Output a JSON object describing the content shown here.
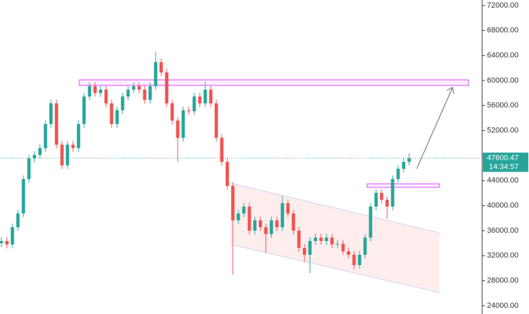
{
  "chart_data": {
    "type": "candlestick",
    "open": [
      34000,
      34350,
      33800,
      36550,
      38750,
      44250,
      47550,
      48100,
      49200,
      53050,
      56350,
      49750,
      46450,
      49750,
      49200,
      53050,
      57450,
      59100,
      58000,
      58550,
      56350,
      53050,
      55250,
      57450,
      58550,
      59100,
      58550,
      56900,
      59100,
      62950,
      61300,
      56350,
      53600,
      50850,
      55250,
      55100,
      57450,
      56350,
      58550,
      56350,
      50850,
      47000,
      43150,
      37650,
      38750,
      39850,
      36000,
      37650,
      36550,
      35450,
      37650,
      36550,
      40400,
      38750,
      36000,
      33250,
      32150,
      34350,
      34900,
      34350,
      34900,
      33800,
      33900,
      32700,
      32150,
      30500,
      32150,
      34900,
      39850,
      42050,
      40950,
      39850,
      44250,
      45900,
      47000
    ],
    "high": [
      34950,
      34950,
      37150,
      39350,
      44850,
      48150,
      48700,
      49800,
      53650,
      56950,
      56950,
      50350,
      50350,
      50350,
      53650,
      58050,
      59700,
      59700,
      59150,
      59150,
      56950,
      55850,
      58050,
      59150,
      59700,
      59700,
      59150,
      59700,
      64600,
      63550,
      61900,
      56950,
      54200,
      55850,
      55850,
      58050,
      58050,
      59800,
      59150,
      56950,
      51450,
      47600,
      43750,
      39350,
      40450,
      40450,
      38250,
      38250,
      37150,
      38250,
      38250,
      41500,
      41000,
      39350,
      36600,
      33850,
      34950,
      35500,
      35500,
      35500,
      35500,
      34500,
      34500,
      33300,
      32750,
      32750,
      35500,
      40450,
      42650,
      42650,
      41550,
      44850,
      46500,
      47600,
      48400
    ],
    "low": [
      33400,
      33200,
      33200,
      35950,
      38150,
      43650,
      46950,
      47500,
      48600,
      52450,
      49150,
      45850,
      45850,
      48600,
      48600,
      52450,
      56850,
      57400,
      57400,
      55750,
      52450,
      52450,
      54650,
      56850,
      57950,
      57950,
      56300,
      56300,
      58500,
      60700,
      55750,
      53000,
      47000,
      50250,
      54500,
      54500,
      55750,
      55750,
      55750,
      50250,
      46400,
      42550,
      29000,
      37050,
      38150,
      35400,
      35400,
      35950,
      32500,
      34850,
      35950,
      35950,
      38150,
      35400,
      32650,
      31000,
      29200,
      33750,
      33750,
      33750,
      33200,
      33200,
      32100,
      31550,
      29800,
      29900,
      31550,
      34300,
      39250,
      40350,
      37900,
      39250,
      43650,
      45300,
      46400
    ],
    "close": [
      34350,
      33800,
      36550,
      38750,
      44250,
      47550,
      48100,
      49200,
      53050,
      56350,
      49750,
      46450,
      49750,
      49200,
      53050,
      57450,
      59100,
      58000,
      58550,
      56350,
      53050,
      55250,
      57450,
      58550,
      59100,
      58550,
      56900,
      59100,
      62950,
      61300,
      56350,
      53600,
      50850,
      55250,
      55100,
      57450,
      56350,
      58550,
      56350,
      50850,
      47000,
      43150,
      37650,
      38750,
      39850,
      36000,
      37650,
      36550,
      35450,
      37650,
      36550,
      40400,
      38750,
      36000,
      33250,
      32150,
      34350,
      34900,
      34350,
      34900,
      33800,
      33900,
      32700,
      32150,
      30500,
      32150,
      34900,
      39850,
      42050,
      40950,
      39850,
      44250,
      45900,
      47000,
      47600.47
    ],
    "up_color": "#26a69a",
    "down_color": "#ef5350",
    "ylim": [
      22680,
      72880
    ],
    "yticks": [
      {
        "value": 24000,
        "label": "24000.00"
      },
      {
        "value": 28000,
        "label": "28000.00"
      },
      {
        "value": 32000,
        "label": "32000.00"
      },
      {
        "value": 36000,
        "label": "36000.00"
      },
      {
        "value": 40000,
        "label": "40000.00"
      },
      {
        "value": 44000,
        "label": "44000.00"
      },
      {
        "value": 48000,
        "label": "48000.00"
      },
      {
        "value": 52000,
        "label": "52000.00"
      },
      {
        "value": 56000,
        "label": "56000.00"
      },
      {
        "value": 60000,
        "label": "60000.00"
      },
      {
        "value": 64000,
        "label": "64000.00"
      },
      {
        "value": 68000,
        "label": "68000.00"
      },
      {
        "value": 72000,
        "label": "72000.00"
      }
    ],
    "current_price": 47600.47,
    "current_time": "14:34:57"
  }
}
